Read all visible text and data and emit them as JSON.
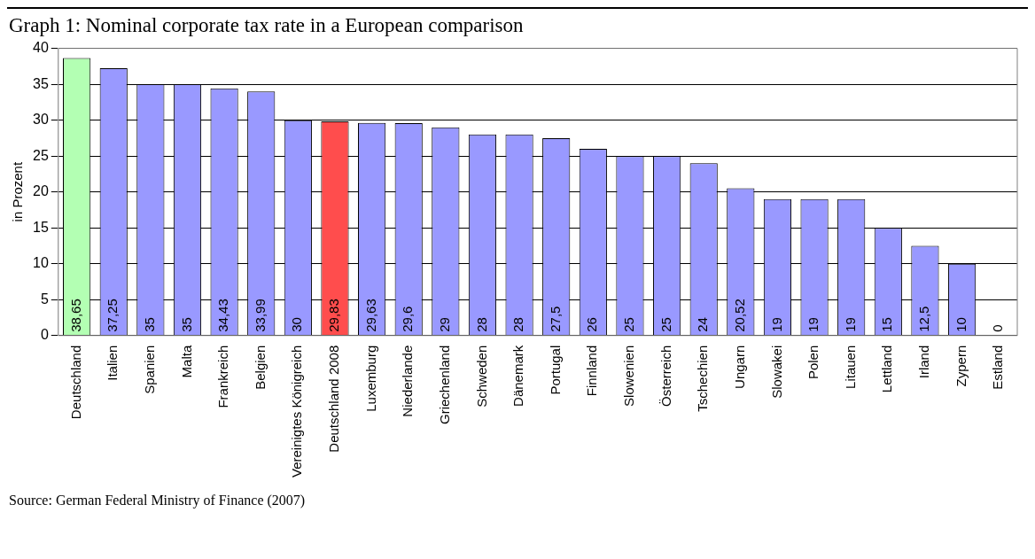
{
  "chart_data": {
    "type": "bar",
    "title": "Graph 1: Nominal corporate tax rate in a European comparison",
    "ylabel": "in Prozent",
    "categories": [
      "Deutschland",
      "Italien",
      "Spanien",
      "Malta",
      "Frankreich",
      "Belgien",
      "Vereinigtes Königreich",
      "Deutschland 2008",
      "Luxemburg",
      "Niederlande",
      "Griechenland",
      "Schweden",
      "Dänemark",
      "Portugal",
      "Finnland",
      "Slowenien",
      "Österreich",
      "Tschechien",
      "Ungarn",
      "Slowakei",
      "Polen",
      "Litauen",
      "Lettland",
      "Irland",
      "Zypern",
      "Estland"
    ],
    "values": [
      38.65,
      37.25,
      35,
      35,
      34.43,
      33.99,
      30,
      29.83,
      29.63,
      29.6,
      29,
      28,
      28,
      27.5,
      26,
      25,
      25,
      24,
      20.52,
      19,
      19,
      19,
      15,
      12.5,
      10,
      0
    ],
    "value_labels": [
      "38,65",
      "37,25",
      "35",
      "35",
      "34,43",
      "33,99",
      "30",
      "29,83",
      "29,63",
      "29,6",
      "29",
      "28",
      "28",
      "27,5",
      "26",
      "25",
      "25",
      "24",
      "20,52",
      "19",
      "19",
      "19",
      "15",
      "12,5",
      "10",
      "0"
    ],
    "colors": [
      "#b3ffb3",
      "#9999ff",
      "#9999ff",
      "#9999ff",
      "#9999ff",
      "#9999ff",
      "#9999ff",
      "#ff4d4d",
      "#9999ff",
      "#9999ff",
      "#9999ff",
      "#9999ff",
      "#9999ff",
      "#9999ff",
      "#9999ff",
      "#9999ff",
      "#9999ff",
      "#9999ff",
      "#9999ff",
      "#9999ff",
      "#9999ff",
      "#9999ff",
      "#9999ff",
      "#9999ff",
      "#9999ff",
      "#9999ff"
    ],
    "ylim": [
      0,
      40
    ],
    "yticks": [
      0,
      5,
      10,
      15,
      20,
      25,
      30,
      35,
      40
    ],
    "grid": "y",
    "legend": false,
    "annotations": [
      "Source: German Federal Ministry of Finance (2007)"
    ]
  }
}
